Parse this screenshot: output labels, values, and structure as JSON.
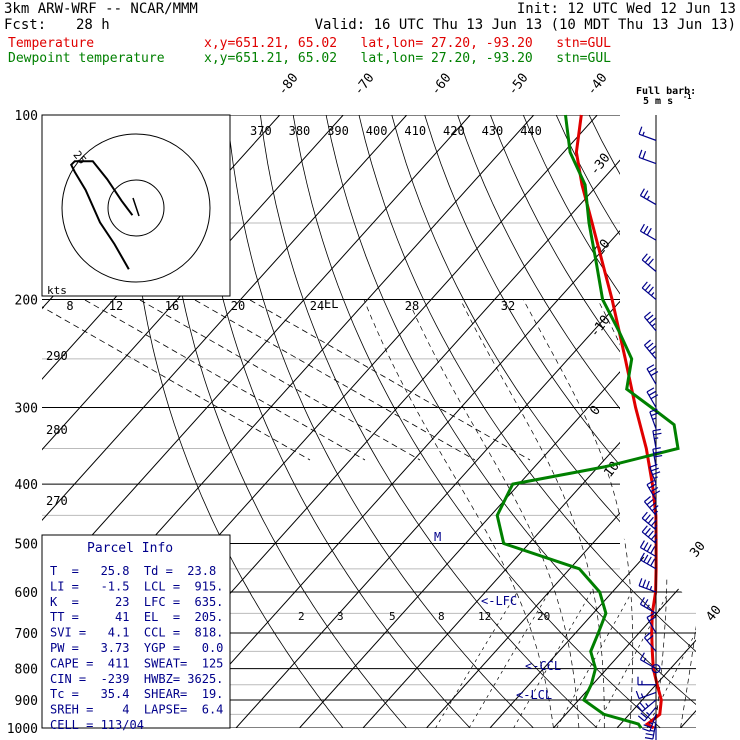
{
  "header": {
    "model": "3km ARW-WRF -- NCAR/MMM",
    "init": "Init: 12 UTC Wed 12 Jun 13",
    "fcst_label": "Fcst:",
    "fcst_value": "28 h",
    "valid": "Valid: 16 UTC Thu 13 Jun 13 (10 MDT Thu 13 Jun 13)",
    "legend": [
      {
        "name": "Temperature",
        "info": "x,y=651.21, 65.02   lat,lon= 27.20, -93.20   stn=GUL",
        "color": "#e00000"
      },
      {
        "name": "Dewpoint temperature",
        "info": "x,y=651.21, 65.02   lat,lon= 27.20, -93.20   stn=GUL",
        "color": "#008000"
      }
    ]
  },
  "barb_key": {
    "line1": "Full barb:",
    "line2": "5 m s",
    "sup": "-1"
  },
  "hodograph": {
    "units": "kts",
    "ring_labels": [
      "8",
      "12",
      "16",
      "20",
      "24",
      "28",
      "32"
    ],
    "marker": "25",
    "label_r": "EL"
  },
  "parcel_info": {
    "title": "Parcel Info",
    "rows": [
      "T  =   25.8  Td =  23.8",
      "LI =   -1.5  LCL =  915.",
      "K  =     23  LFC =  635.",
      "TT =     41  EL  =  205.",
      "SVI =   4.1  CCL =  818.",
      "PW =   3.73  YGP =   0.0",
      "CAPE =  411  SWEAT=  125",
      "CIN =  -239  HWBZ= 3625.",
      "Tc =   35.4  SHEAR=  19.",
      "SREH =    4  LAPSE=  6.4",
      "CELL = 113/04"
    ]
  },
  "annotations": {
    "lfc": "<-LFC",
    "ccl": "<-CCL",
    "lcl": "<-LCL",
    "m": "M"
  },
  "chart_data": {
    "type": "line",
    "subtype": "skew-T log-P",
    "y_axis": {
      "quantity": "pressure",
      "units": "hPa",
      "scale": "log",
      "ticks": [
        100,
        200,
        300,
        400,
        500,
        600,
        700,
        800,
        900,
        1000
      ]
    },
    "isotherm_labels": [
      "-80",
      "-70",
      "-60",
      "-50",
      "-40",
      "-30",
      "-20",
      "-10",
      "0",
      "10",
      "20",
      "30",
      "40"
    ],
    "theta_labels": [
      "370",
      "380",
      "390",
      "400",
      "410",
      "420",
      "430",
      "440"
    ],
    "theta_side_labels": [
      "290",
      "280",
      "270"
    ],
    "mixing_ratio_labels": [
      "2",
      "3",
      "5",
      "8",
      "12",
      "20"
    ],
    "series": [
      {
        "name": "Temperature",
        "color": "#e00000",
        "points": [
          [
            1000,
            25.8
          ],
          [
            985,
            24.2
          ],
          [
            975,
            24.4
          ],
          [
            950,
            24.8
          ],
          [
            900,
            23.0
          ],
          [
            850,
            20.2
          ],
          [
            800,
            17.3
          ],
          [
            750,
            14.7
          ],
          [
            700,
            12.0
          ],
          [
            650,
            9.3
          ],
          [
            600,
            6.8
          ],
          [
            550,
            3.6
          ],
          [
            500,
            0.0
          ],
          [
            450,
            -4.0
          ],
          [
            400,
            -9.0
          ],
          [
            350,
            -15.0
          ],
          [
            300,
            -22.5
          ],
          [
            250,
            -31.0
          ],
          [
            200,
            -41.5
          ],
          [
            175,
            -48.0
          ],
          [
            150,
            -55.5
          ],
          [
            130,
            -62.5
          ],
          [
            115,
            -68.0
          ],
          [
            100,
            -72.5
          ]
        ]
      },
      {
        "name": "Dewpoint temperature",
        "color": "#008000",
        "points": [
          [
            1000,
            23.8
          ],
          [
            985,
            22.8
          ],
          [
            950,
            16.0
          ],
          [
            900,
            10.8
          ],
          [
            850,
            9.8
          ],
          [
            800,
            8.2
          ],
          [
            750,
            5.0
          ],
          [
            700,
            3.6
          ],
          [
            650,
            2.0
          ],
          [
            600,
            -2.0
          ],
          [
            550,
            -8.5
          ],
          [
            500,
            -24.0
          ],
          [
            450,
            -29.0
          ],
          [
            400,
            -31.0
          ],
          [
            375,
            -19.0
          ],
          [
            350,
            -10.0
          ],
          [
            320,
            -14.0
          ],
          [
            300,
            -20.0
          ],
          [
            280,
            -26.5
          ],
          [
            250,
            -30.0
          ],
          [
            225,
            -36.0
          ],
          [
            200,
            -43.0
          ],
          [
            175,
            -49.0
          ],
          [
            150,
            -56.0
          ],
          [
            130,
            -62.0
          ],
          [
            115,
            -69.0
          ],
          [
            100,
            -75.0
          ]
        ]
      }
    ],
    "wind_barbs": [
      {
        "p": 1000,
        "dir": 180,
        "speed": 2
      },
      {
        "p": 975,
        "dir": 190,
        "speed": 5
      },
      {
        "p": 950,
        "dir": 200,
        "speed": 5
      },
      {
        "p": 925,
        "dir": 220,
        "speed": 5
      },
      {
        "p": 900,
        "dir": 230,
        "speed": 5
      },
      {
        "p": 875,
        "dir": 250,
        "speed": 3
      },
      {
        "p": 850,
        "dir": 270,
        "speed": 3
      },
      {
        "p": 800,
        "dir": 300,
        "speed": 3
      },
      {
        "p": 750,
        "dir": 320,
        "speed": 4
      },
      {
        "p": 700,
        "dir": 330,
        "speed": 4
      },
      {
        "p": 650,
        "dir": 300,
        "speed": 5
      },
      {
        "p": 600,
        "dir": 290,
        "speed": 7
      },
      {
        "p": 550,
        "dir": 300,
        "speed": 8
      },
      {
        "p": 525,
        "dir": 300,
        "speed": 8
      },
      {
        "p": 500,
        "dir": 310,
        "speed": 9
      },
      {
        "p": 475,
        "dir": 310,
        "speed": 9
      },
      {
        "p": 450,
        "dir": 320,
        "speed": 9
      },
      {
        "p": 425,
        "dir": 330,
        "speed": 8
      },
      {
        "p": 400,
        "dir": 340,
        "speed": 7
      },
      {
        "p": 375,
        "dir": 350,
        "speed": 6
      },
      {
        "p": 350,
        "dir": 350,
        "speed": 5
      },
      {
        "p": 325,
        "dir": 340,
        "speed": 5
      },
      {
        "p": 300,
        "dir": 330,
        "speed": 6
      },
      {
        "p": 275,
        "dir": 330,
        "speed": 6
      },
      {
        "p": 250,
        "dir": 320,
        "speed": 7
      },
      {
        "p": 225,
        "dir": 320,
        "speed": 7
      },
      {
        "p": 200,
        "dir": 310,
        "speed": 7
      },
      {
        "p": 180,
        "dir": 310,
        "speed": 6
      },
      {
        "p": 160,
        "dir": 300,
        "speed": 6
      },
      {
        "p": 140,
        "dir": 300,
        "speed": 5
      },
      {
        "p": 120,
        "dir": 290,
        "speed": 4
      },
      {
        "p": 110,
        "dir": 290,
        "speed": 3
      }
    ],
    "hodograph_points": [
      [
        -2,
        -17
      ],
      [
        -6,
        -10
      ],
      [
        -10,
        -4
      ],
      [
        -14,
        5
      ],
      [
        -17,
        10
      ],
      [
        -18,
        12
      ],
      [
        -17,
        13
      ],
      [
        -12,
        13
      ],
      [
        -8,
        8
      ],
      [
        -4,
        2
      ],
      [
        -1,
        -2
      ]
    ]
  }
}
